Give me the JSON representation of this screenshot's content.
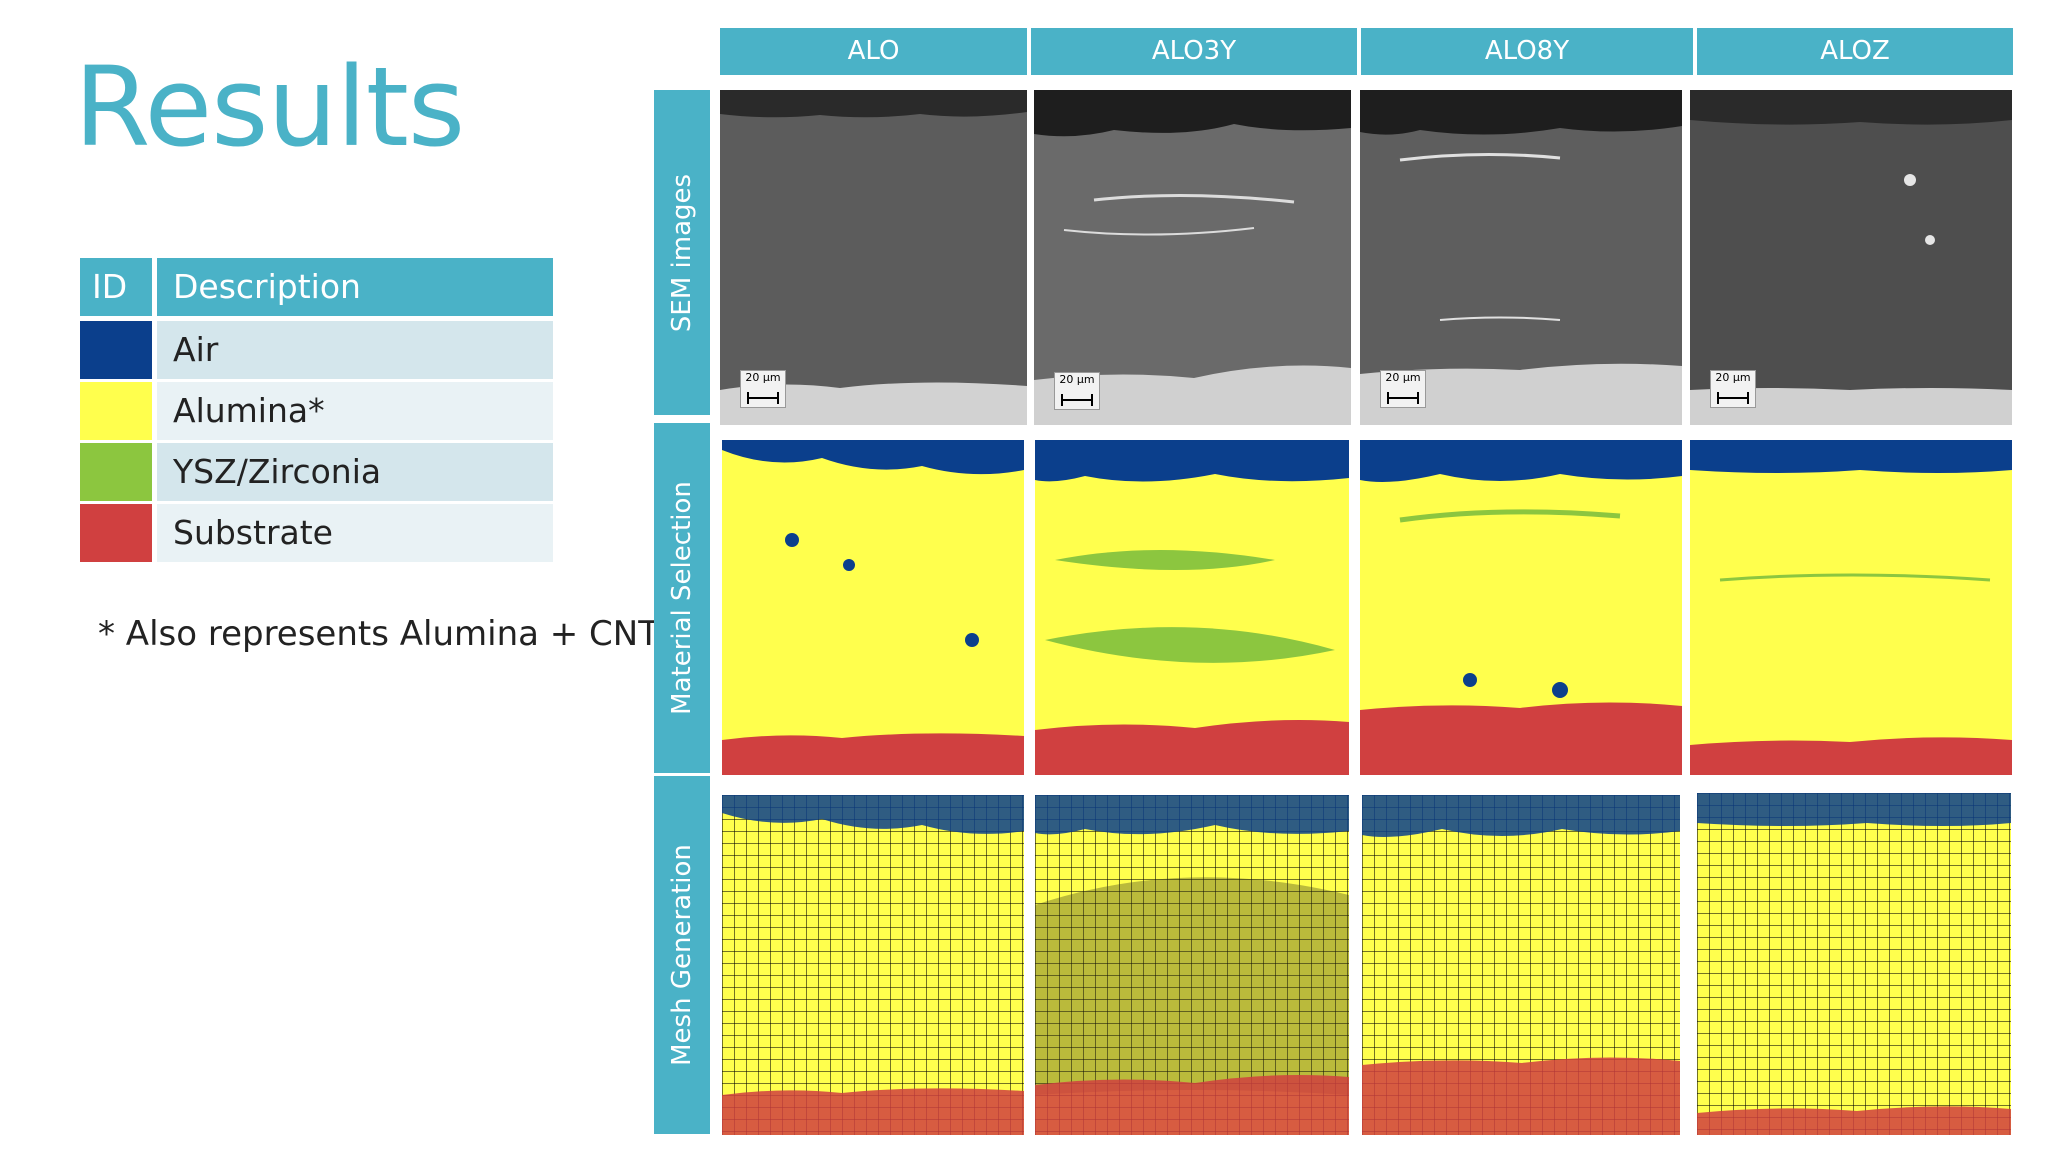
{
  "title": "Results",
  "legend": {
    "header": {
      "id": "ID",
      "description": "Description"
    },
    "rows": [
      {
        "color": "#0b3f8c",
        "label": "Air"
      },
      {
        "color": "#ffff4d",
        "label": "Alumina*"
      },
      {
        "color": "#8cc63f",
        "label": "YSZ/Zirconia"
      },
      {
        "color": "#d04040",
        "label": "Substrate"
      }
    ]
  },
  "note": "* Also represents Alumina + CNT",
  "columns": [
    "ALO",
    "ALO3Y",
    "ALO8Y",
    "ALOZ"
  ],
  "rows": [
    "SEM images",
    "Material Selection",
    "Mesh Generation"
  ],
  "scale_label": "20 µm"
}
